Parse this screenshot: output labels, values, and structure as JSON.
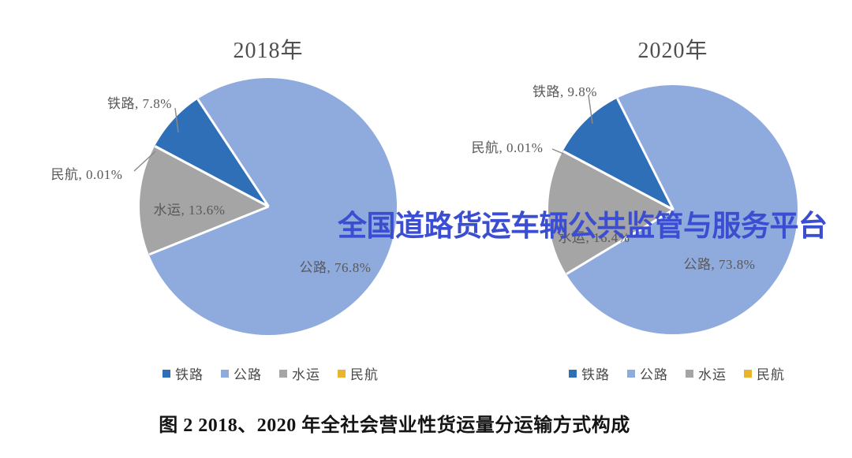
{
  "watermark": {
    "text": "全国道路货运车辆公共监管与服务平台",
    "color": "#3b4ed1"
  },
  "caption": "图 2 2018、2020 年全社会营业性货运量分运输方式构成",
  "legend": {
    "items": [
      {
        "label": "铁路",
        "color": "#2e6fb7"
      },
      {
        "label": "公路",
        "color": "#8faadc"
      },
      {
        "label": "水运",
        "color": "#a5a5a5"
      },
      {
        "label": "民航",
        "color": "#e9b52f"
      }
    ]
  },
  "chart_data": [
    {
      "type": "pie",
      "title": "2018年",
      "categories": [
        "铁路",
        "公路",
        "水运",
        "民航"
      ],
      "values": [
        7.8,
        76.8,
        13.6,
        0.01
      ],
      "unit": "percent of freight volume",
      "colors": [
        "#2e6fb7",
        "#8faadc",
        "#a5a5a5",
        "#e9b52f"
      ],
      "start_angle_deg": 298,
      "direction": "clockwise",
      "slice_labels": [
        "铁路, 7.8%",
        "公路, 76.8%",
        "水运, 13.6%",
        "民航, 0.01%"
      ],
      "legend_position": "bottom"
    },
    {
      "type": "pie",
      "title": "2020年",
      "categories": [
        "铁路",
        "公路",
        "水运",
        "民航"
      ],
      "values": [
        9.8,
        73.8,
        16.4,
        0.01
      ],
      "unit": "percent of freight volume",
      "colors": [
        "#2e6fb7",
        "#8faadc",
        "#a5a5a5",
        "#e9b52f"
      ],
      "start_angle_deg": 298,
      "direction": "clockwise",
      "slice_labels": [
        "铁路, 9.8%",
        "公路, 73.8%",
        "水运, 16.4%",
        "民航, 0.01%"
      ],
      "legend_position": "bottom"
    }
  ]
}
